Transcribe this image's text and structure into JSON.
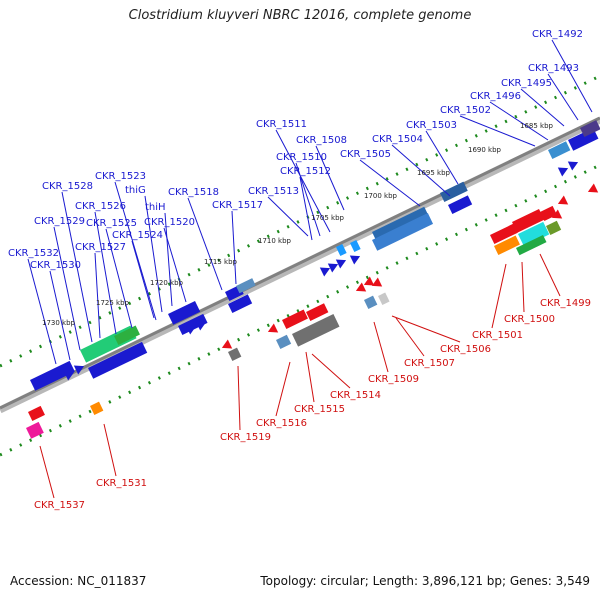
{
  "title": "Clostridium kluyveri NBRC 12016, complete genome",
  "footer": {
    "accession": "Accession: NC_011837",
    "summary": "Topology: circular; Length: 3,896,121 bp; Genes: 3,549"
  },
  "colors": {
    "forward_label": "#1a1ad0",
    "reverse_label": "#d01010",
    "track": "#808080",
    "tick": "#1e8a1e"
  },
  "kbp_labels": [
    "1685 kbp",
    "1690 kbp",
    "1695 kbp",
    "1700 kbp",
    "1705 kbp",
    "1710 kbp",
    "1715 kbp",
    "1720 kbp",
    "1725 kbp",
    "1730 kbp"
  ],
  "forward_labels": [
    "CKR_1492",
    "CKR_1493",
    "CKR_1495",
    "CKR_1496",
    "CKR_1502",
    "CKR_1503",
    "CKR_1504",
    "CKR_1505",
    "CKR_1508",
    "CKR_1511",
    "CKR_1510",
    "CKR_1512",
    "CKR_1513",
    "CKR_1517",
    "CKR_1518",
    "CKR_1520",
    "thiH",
    "thiG",
    "CKR_1523",
    "CKR_1524",
    "CKR_1525",
    "CKR_1526",
    "CKR_1527",
    "CKR_1528",
    "CKR_1529",
    "CKR_1530",
    "CKR_1532"
  ],
  "reverse_labels": [
    "CKR_1499",
    "CKR_1500",
    "CKR_1501",
    "CKR_1506",
    "CKR_1507",
    "CKR_1509",
    "CKR_1514",
    "CKR_1515",
    "CKR_1516",
    "CKR_1519",
    "CKR_1531",
    "CKR_1537"
  ]
}
